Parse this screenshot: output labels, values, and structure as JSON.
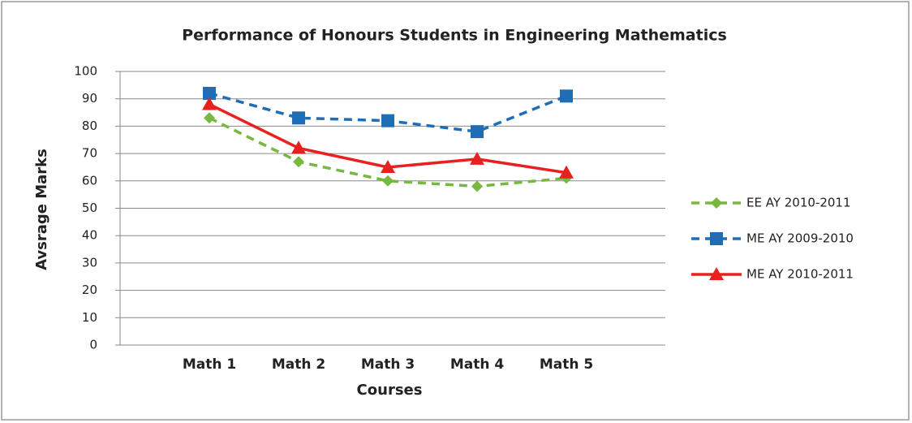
{
  "chart_data": {
    "type": "line",
    "title": "Performance of Honours Students in Engineering Mathematics",
    "x_label": "Courses",
    "y_label": "Avsrage Marks",
    "categories": [
      "Math 1",
      "Math 2",
      "Math 3",
      "Math 4",
      "Math 5"
    ],
    "series": [
      {
        "name": "EE AY 2010-2011",
        "color": "#77b843",
        "dash": true,
        "marker": "diamond",
        "values": [
          83,
          67,
          60,
          58,
          61
        ]
      },
      {
        "name": "ME AY 2009-2010",
        "color": "#1f6eb5",
        "dash": true,
        "marker": "square",
        "values": [
          92,
          83,
          82,
          78,
          91
        ]
      },
      {
        "name": "ME AY 2010-2011",
        "color": "#e8201f",
        "dash": false,
        "marker": "triangle",
        "values": [
          88,
          72,
          65,
          68,
          63
        ]
      }
    ],
    "ylim": [
      0,
      100
    ],
    "yticks": [
      0,
      10,
      20,
      30,
      40,
      50,
      60,
      70,
      80,
      90,
      100
    ],
    "grid": true,
    "legend": "right"
  }
}
